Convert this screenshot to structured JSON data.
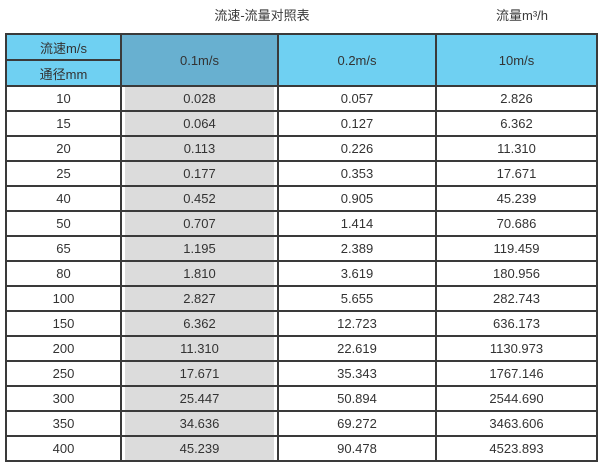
{
  "titles": {
    "left": "流速-流量对照表",
    "right": "流量m³/h"
  },
  "table": {
    "corner_top": "流速m/s",
    "corner_bottom": "通径mm",
    "columns": [
      "0.1m/s",
      "0.2m/s",
      "10m/s"
    ]
  },
  "chart_data": {
    "type": "table",
    "title": "流速-流量对照表",
    "flow_unit_label": "流量m³/h",
    "columns": [
      "通径mm",
      "0.1m/s",
      "0.2m/s",
      "10m/s"
    ],
    "rows": [
      [
        "10",
        "0.028",
        "0.057",
        "2.826"
      ],
      [
        "15",
        "0.064",
        "0.127",
        "6.362"
      ],
      [
        "20",
        "0.113",
        "0.226",
        "11.310"
      ],
      [
        "25",
        "0.177",
        "0.353",
        "17.671"
      ],
      [
        "40",
        "0.452",
        "0.905",
        "45.239"
      ],
      [
        "50",
        "0.707",
        "1.414",
        "70.686"
      ],
      [
        "65",
        "1.195",
        "2.389",
        "119.459"
      ],
      [
        "80",
        "1.810",
        "3.619",
        "180.956"
      ],
      [
        "100",
        "2.827",
        "5.655",
        "282.743"
      ],
      [
        "150",
        "6.362",
        "12.723",
        "636.173"
      ],
      [
        "200",
        "11.310",
        "22.619",
        "1130.973"
      ],
      [
        "250",
        "17.671",
        "35.343",
        "1767.146"
      ],
      [
        "300",
        "25.447",
        "50.894",
        "2544.690"
      ],
      [
        "350",
        "34.636",
        "69.272",
        "3463.606"
      ],
      [
        "400",
        "45.239",
        "90.478",
        "4523.893"
      ]
    ]
  },
  "colors": {
    "header_light_blue": "#6fd0f2",
    "header_dark_blue": "#68b0d0",
    "gray_fill": "#dcdcdc",
    "border_color": "#3a3a3a",
    "text_color": "#333333"
  }
}
